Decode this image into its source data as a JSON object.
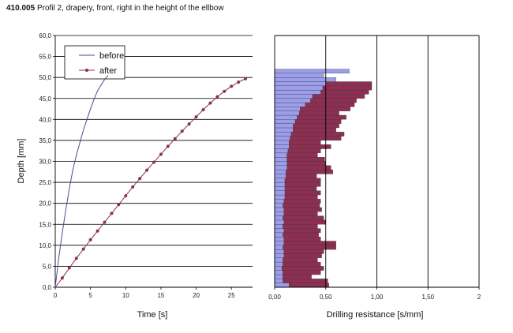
{
  "page": {
    "title_id": "410.005",
    "title_rest": "Profil 2, drapery, front, right in the height of the ellbow"
  },
  "chart_data": [
    {
      "type": "line",
      "title": "",
      "xlabel": "Time [s]",
      "ylabel": "Depth [mm]",
      "xlim": [
        0,
        28
      ],
      "ylim": [
        0,
        60
      ],
      "x_ticks": [
        "0",
        "5",
        "10",
        "15",
        "20",
        "25"
      ],
      "x_tick_values": [
        0,
        5,
        10,
        15,
        20,
        25
      ],
      "y_ticks": [
        "0,0",
        "5,0",
        "10,0",
        "15,0",
        "20,0",
        "25,0",
        "30,0",
        "35,0",
        "40,0",
        "45,0",
        "50,0",
        "55,0",
        "60,0"
      ],
      "y_tick_values": [
        0,
        5,
        10,
        15,
        20,
        25,
        30,
        35,
        40,
        45,
        50,
        55,
        60
      ],
      "grid": "horizontal",
      "legend_position": "top-left",
      "series": [
        {
          "name": "before",
          "color": "#4a4f8a",
          "marker": "none",
          "x": [
            0,
            0.5,
            1,
            1.5,
            2,
            2.5,
            3,
            3.5,
            4,
            4.5,
            5,
            5.5,
            6,
            6.5,
            7,
            7.5
          ],
          "y": [
            0,
            7,
            13,
            18.5,
            23.5,
            28,
            31.5,
            34.5,
            37.5,
            40,
            42.5,
            44.8,
            46.8,
            48.2,
            49.5,
            50.5
          ]
        },
        {
          "name": "after",
          "color": "#8b3050",
          "marker": "circle",
          "x": [
            0,
            1,
            2,
            3,
            4,
            5,
            6,
            7,
            8,
            9,
            10,
            11,
            12,
            13,
            14,
            15,
            16,
            17,
            18,
            19,
            20,
            21,
            22,
            23,
            24,
            25,
            26,
            27
          ],
          "y": [
            0,
            2.2,
            4.6,
            6.9,
            9.1,
            11.3,
            13.4,
            15.5,
            17.6,
            19.7,
            21.8,
            23.9,
            25.9,
            27.9,
            29.8,
            31.7,
            33.6,
            35.4,
            37.2,
            38.9,
            40.6,
            42.3,
            43.9,
            45.4,
            46.7,
            47.9,
            48.9,
            49.7
          ]
        }
      ]
    },
    {
      "type": "bar",
      "orientation": "horizontal",
      "title": "",
      "xlabel": "Drilling resistance [s/mm]",
      "ylabel": "",
      "xlim": [
        0,
        2
      ],
      "ylim": [
        0,
        60
      ],
      "x_ticks": [
        "0,00",
        "0,50",
        "1,00",
        "1,50",
        "2"
      ],
      "x_tick_values": [
        0,
        0.5,
        1,
        1.5,
        2
      ],
      "grid": "vertical",
      "bar_height": 1,
      "series": [
        {
          "name": "after",
          "color": "#8b3050",
          "depth": [
            0.5,
            1.5,
            2.5,
            3.5,
            4.5,
            5.5,
            6.5,
            7.5,
            8.5,
            9.5,
            10.5,
            11.5,
            12.5,
            13.5,
            14.5,
            15.5,
            16.5,
            17.5,
            18.5,
            19.5,
            20.5,
            21.5,
            22.5,
            23.5,
            24.5,
            25.5,
            26.5,
            27.5,
            28.5,
            29.5,
            30.5,
            31.5,
            32.5,
            33.5,
            34.5,
            35.5,
            36.5,
            37.5,
            38.5,
            39.5,
            40.5,
            41.5,
            42.5,
            43.5,
            44.5,
            45.5,
            46.5,
            47.5,
            48.5,
            49.5
          ],
          "values": [
            0.53,
            0.52,
            0.36,
            0.45,
            0.48,
            0.45,
            0.42,
            0.46,
            0.48,
            0.6,
            0.6,
            0.45,
            0.43,
            0.45,
            0.42,
            0.5,
            0.48,
            0.42,
            0.46,
            0.44,
            0.45,
            0.42,
            0.45,
            0.41,
            0.45,
            0.45,
            0.41,
            0.57,
            0.55,
            0.5,
            0.49,
            0.42,
            0.45,
            0.55,
            0.45,
            0.65,
            0.68,
            0.6,
            0.63,
            0.65,
            0.7,
            0.63,
            0.74,
            0.78,
            0.8,
            0.88,
            0.92,
            0.95,
            0.95,
            0.5
          ]
        },
        {
          "name": "before",
          "color": "#9b9ee8",
          "depth": [
            0.5,
            1.5,
            2.5,
            3.5,
            4.5,
            5.5,
            6.5,
            7.5,
            8.5,
            9.5,
            10.5,
            11.5,
            12.5,
            13.5,
            14.5,
            15.5,
            16.5,
            17.5,
            18.5,
            19.5,
            20.5,
            21.5,
            22.5,
            23.5,
            24.5,
            25.5,
            26.5,
            27.5,
            28.5,
            29.5,
            30.5,
            31.5,
            32.5,
            33.5,
            34.5,
            35.5,
            36.5,
            37.5,
            38.5,
            39.5,
            40.5,
            41.5,
            42.5,
            43.5,
            44.5,
            45.5,
            46.5,
            47.5,
            48.5,
            49.5,
            50.5,
            51.5
          ],
          "values": [
            0.14,
            0.08,
            0.08,
            0.08,
            0.07,
            0.08,
            0.08,
            0.09,
            0.09,
            0.08,
            0.09,
            0.09,
            0.08,
            0.09,
            0.08,
            0.09,
            0.08,
            0.09,
            0.09,
            0.08,
            0.09,
            0.1,
            0.1,
            0.1,
            0.1,
            0.1,
            0.11,
            0.11,
            0.12,
            0.12,
            0.12,
            0.12,
            0.13,
            0.14,
            0.14,
            0.15,
            0.16,
            0.18,
            0.18,
            0.2,
            0.22,
            0.24,
            0.25,
            0.3,
            0.35,
            0.37,
            0.45,
            0.47,
            0.5,
            0.6,
            0.48,
            0.73
          ]
        }
      ]
    }
  ]
}
